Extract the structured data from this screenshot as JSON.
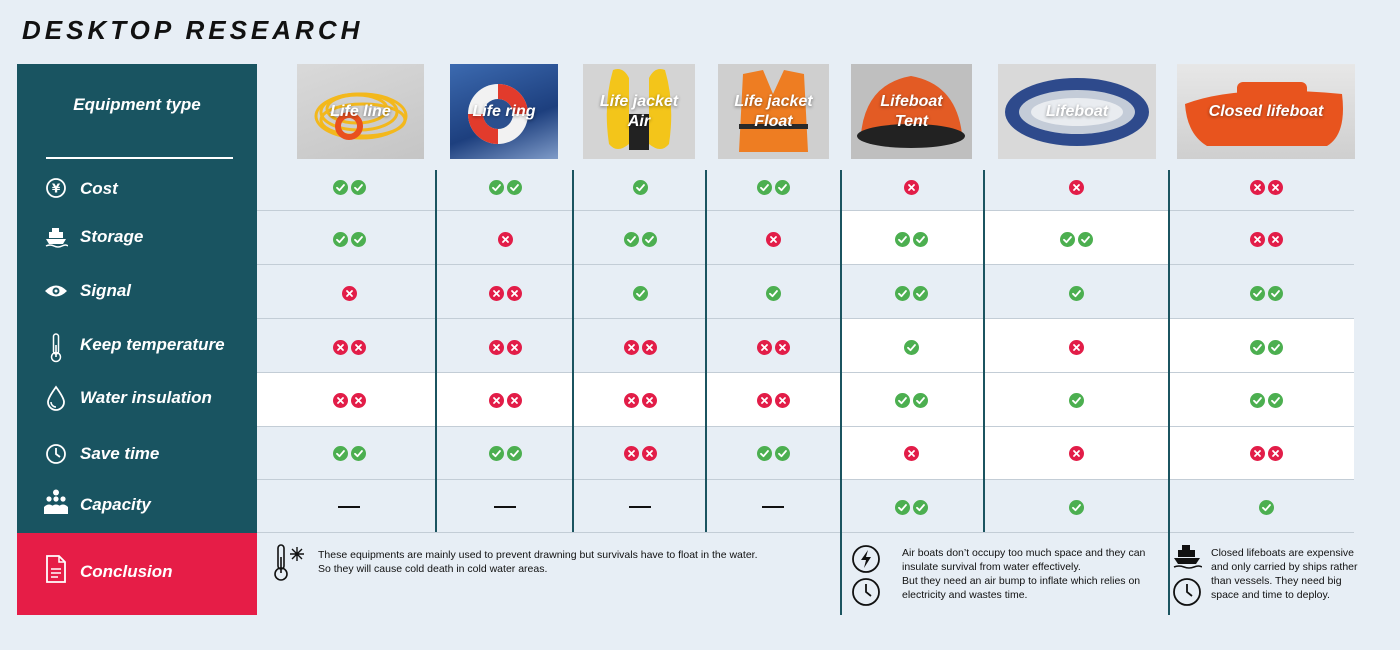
{
  "title": "DESKTOP RESEARCH",
  "header_label": "Equipment type",
  "colors": {
    "sidebar": "#195461",
    "conclusion": "#e61d47",
    "ok": "#4caf50",
    "no": "#e21d48",
    "background": "#e7eef5"
  },
  "criteria": [
    {
      "label": "Cost",
      "icon": "yuan-coin-icon"
    },
    {
      "label": "Storage",
      "icon": "ship-icon"
    },
    {
      "label": "Signal",
      "icon": "eye-icon"
    },
    {
      "label": "Keep temperature",
      "icon": "thermometer-icon"
    },
    {
      "label": "Water insulation",
      "icon": "water-drop-icon"
    },
    {
      "label": "Save time",
      "icon": "clock-icon"
    },
    {
      "label": "Capacity",
      "icon": "people-icon"
    }
  ],
  "conclusion_label": "Conclusion",
  "equipment": [
    {
      "name": "Life line",
      "image": "life-line-photo",
      "ratings": [
        "2 ok",
        "2 ok",
        "1 no",
        "2 no",
        "2 no",
        "2 ok",
        "none"
      ]
    },
    {
      "name": "Life ring",
      "image": "life-ring-photo",
      "ratings": [
        "2 ok",
        "1 no",
        "2 no",
        "2 no",
        "2 no",
        "2 ok",
        "none"
      ]
    },
    {
      "name": "Life jacket\nAir",
      "image": "air-life-jacket-photo",
      "ratings": [
        "1 ok",
        "2 ok",
        "1 ok",
        "2 no",
        "2 no",
        "2 no",
        "none"
      ]
    },
    {
      "name": "Life jacket\nFloat",
      "image": "float-life-jacket-photo",
      "ratings": [
        "2 ok",
        "1 no",
        "1 ok",
        "2 no",
        "2 no",
        "2 ok",
        "none"
      ]
    },
    {
      "name": "Lifeboat\nTent",
      "image": "lifeboat-tent-photo",
      "ratings": [
        "1 no",
        "2 ok",
        "2 ok",
        "1 ok",
        "2 ok",
        "1 no",
        "2 ok"
      ]
    },
    {
      "name": "Lifeboat",
      "image": "inflatable-lifeboat-photo",
      "ratings": [
        "1 no",
        "2 ok",
        "1 ok",
        "1 no",
        "1 ok",
        "1 no",
        "1 ok"
      ]
    },
    {
      "name": "Closed lifeboat",
      "image": "closed-lifeboat-photo",
      "ratings": [
        "2 no",
        "2 no",
        "2 ok",
        "2 ok",
        "2 ok",
        "2 no",
        "1 ok"
      ]
    }
  ],
  "notes": {
    "personal": "These equipments are mainly used to prevent drawning but survivals have to float in the water.\nSo they will cause cold death in cold water areas.",
    "air_boats": "Air boats don’t occupy too much space and they can insulate survival from water effectively.\nBut they need an air bump to inflate which relies on electricity and wastes time.",
    "closed": "Closed lifeboats are expensive and only carried by ships rather than vessels. They need big space and time to deploy."
  }
}
